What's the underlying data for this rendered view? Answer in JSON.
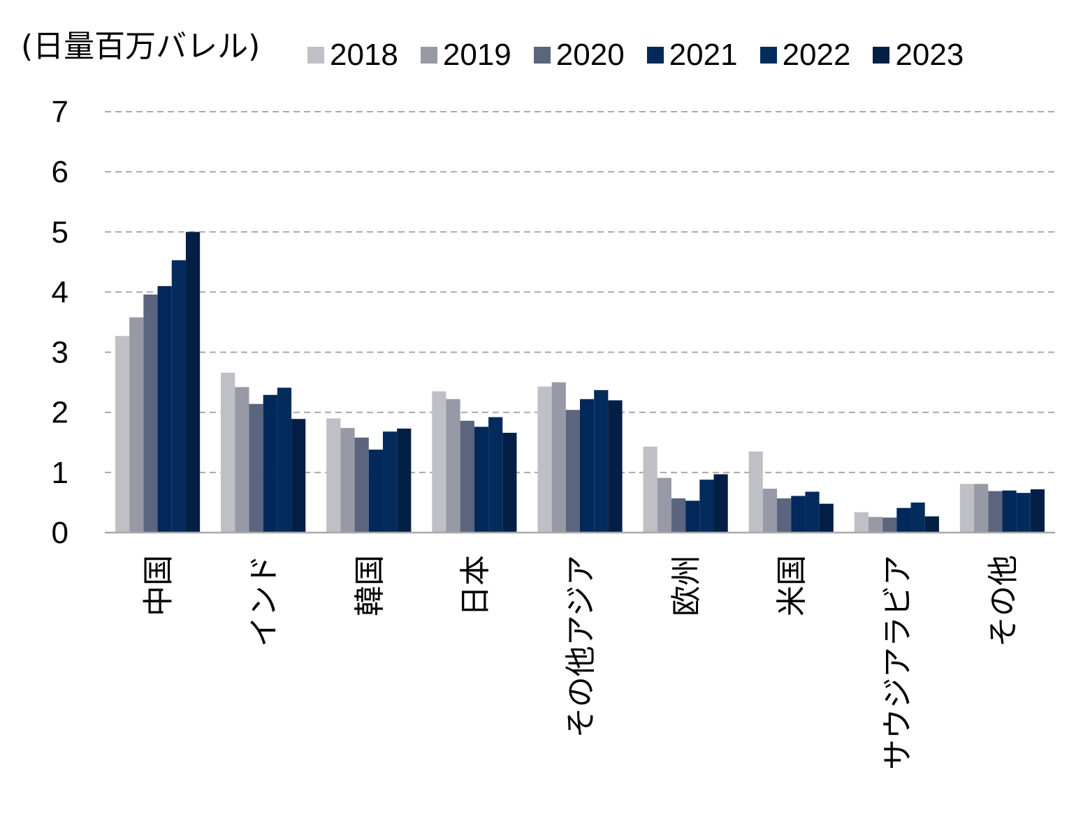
{
  "chart_data": {
    "type": "bar",
    "ylabel": "(日量百万バレル)",
    "ylim": [
      0,
      7
    ],
    "yticks": [
      "0",
      "1",
      "2",
      "3",
      "4",
      "5",
      "6",
      "7"
    ],
    "grid": true,
    "legend_position": "top",
    "categories": [
      "中国",
      "インド",
      "韓国",
      "日本",
      "その他アジア",
      "欧州",
      "米国",
      "サウジアラビア",
      "その他"
    ],
    "series": [
      {
        "name": "2018",
        "color": "#bfc0c5",
        "values": [
          3.27,
          2.66,
          1.9,
          2.35,
          2.43,
          1.43,
          1.35,
          0.34,
          0.81
        ]
      },
      {
        "name": "2019",
        "color": "#9799a6",
        "values": [
          3.58,
          2.42,
          1.74,
          2.22,
          2.5,
          0.91,
          0.73,
          0.26,
          0.81
        ]
      },
      {
        "name": "2020",
        "color": "#5c657e",
        "values": [
          3.96,
          2.14,
          1.58,
          1.86,
          2.04,
          0.57,
          0.57,
          0.25,
          0.69
        ]
      },
      {
        "name": "2021",
        "color": "#03285a",
        "values": [
          4.1,
          2.29,
          1.38,
          1.76,
          2.22,
          0.53,
          0.61,
          0.41,
          0.7
        ]
      },
      {
        "name": "2022",
        "color": "#032b5c",
        "values": [
          4.53,
          2.41,
          1.68,
          1.92,
          2.37,
          0.88,
          0.68,
          0.5,
          0.66
        ]
      },
      {
        "name": "2023",
        "color": "#041f45",
        "values": [
          5.0,
          1.89,
          1.73,
          1.66,
          2.2,
          0.97,
          0.48,
          0.27,
          0.72
        ]
      }
    ]
  }
}
